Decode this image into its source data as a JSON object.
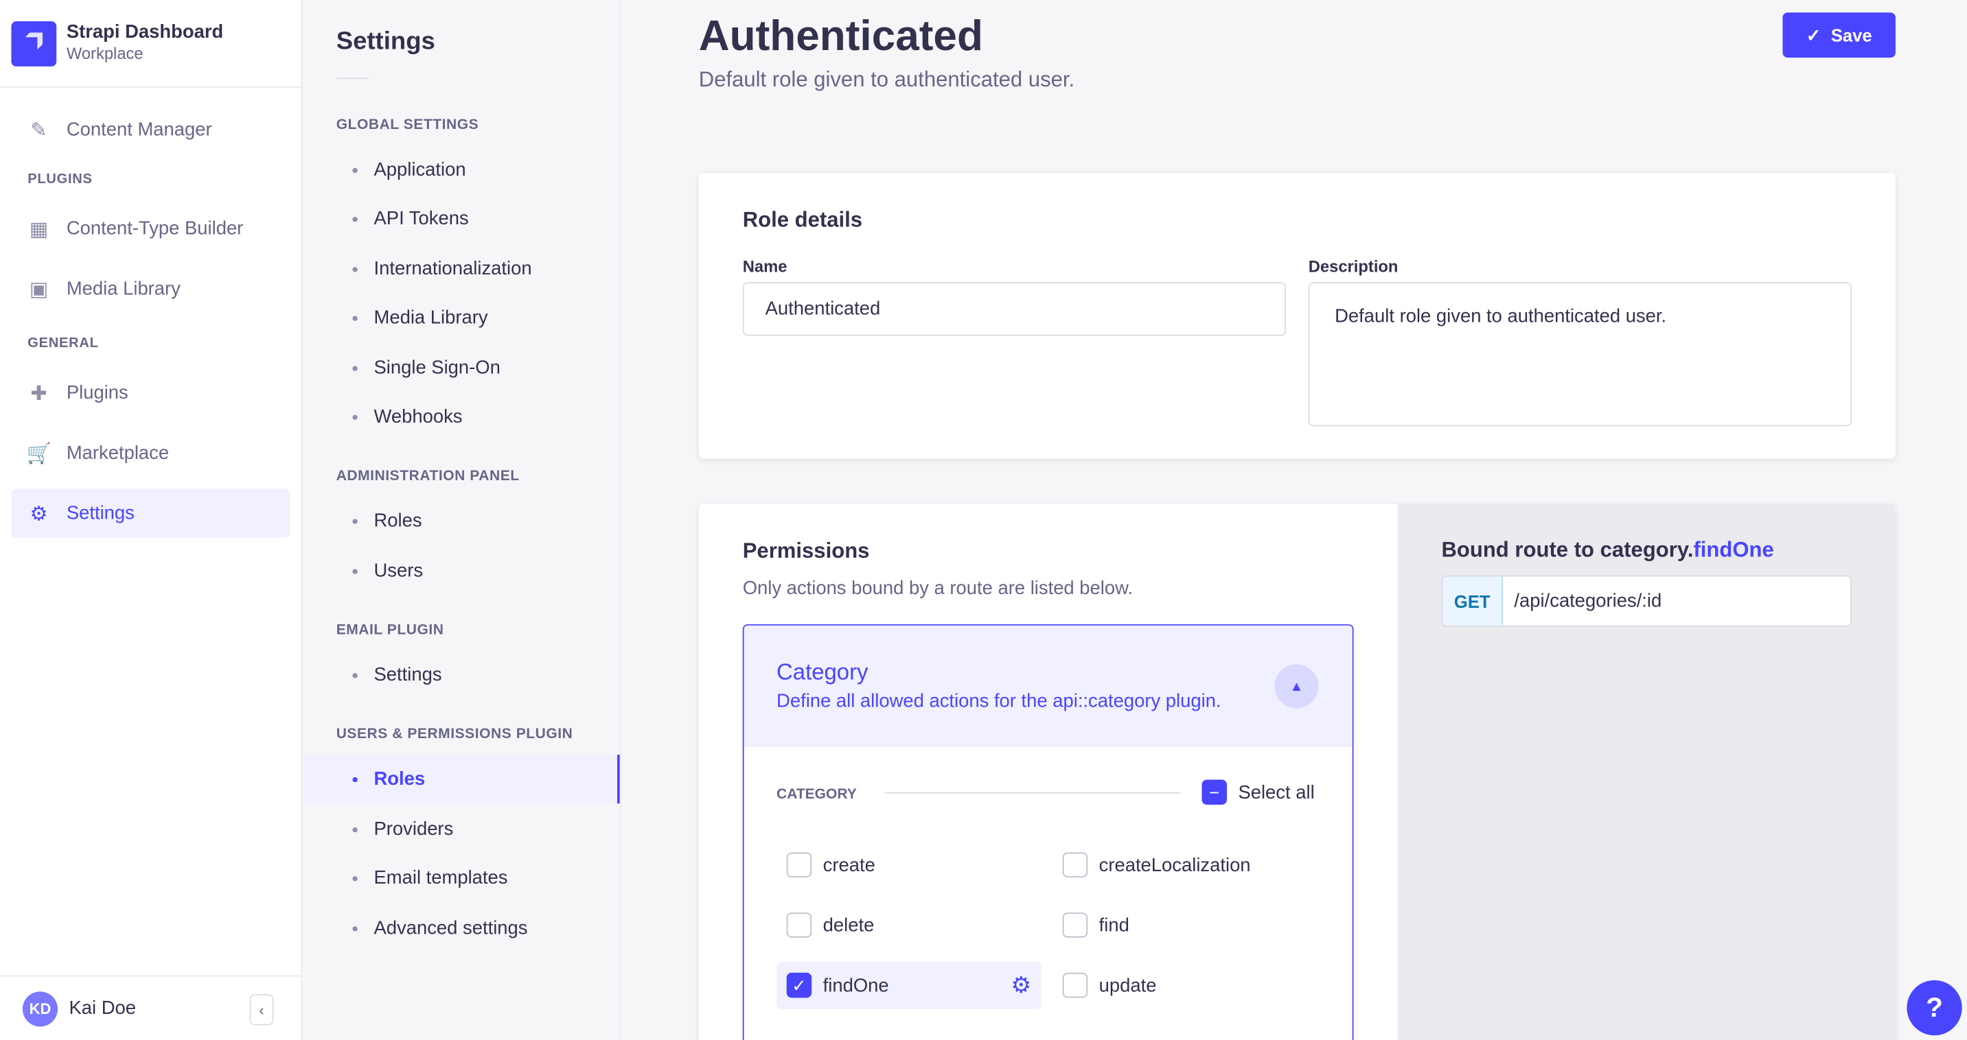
{
  "app": {
    "title": "Strapi Dashboard",
    "workspace": "Workplace"
  },
  "nav": {
    "content_manager": "Content Manager",
    "plugins_section": "PLUGINS",
    "content_type_builder": "Content-Type Builder",
    "media_library": "Media Library",
    "general_section": "GENERAL",
    "plugins": "Plugins",
    "marketplace": "Marketplace",
    "settings": "Settings"
  },
  "user": {
    "initials": "KD",
    "name": "Kai Doe"
  },
  "settings_nav": {
    "title": "Settings",
    "sections": [
      {
        "label": "GLOBAL SETTINGS",
        "items": [
          "Application",
          "API Tokens",
          "Internationalization",
          "Media Library",
          "Single Sign-On",
          "Webhooks"
        ]
      },
      {
        "label": "ADMINISTRATION PANEL",
        "items": [
          "Roles",
          "Users"
        ]
      },
      {
        "label": "EMAIL PLUGIN",
        "items": [
          "Settings"
        ]
      },
      {
        "label": "USERS & PERMISSIONS PLUGIN",
        "items": [
          "Roles",
          "Providers",
          "Email templates",
          "Advanced settings"
        ]
      }
    ],
    "active": "Roles"
  },
  "page": {
    "title": "Authenticated",
    "subtitle": "Default role given to authenticated user.",
    "save_label": "Save"
  },
  "role_details": {
    "heading": "Role details",
    "name_label": "Name",
    "name_value": "Authenticated",
    "description_label": "Description",
    "description_value": "Default role given to authenticated user."
  },
  "permissions": {
    "heading": "Permissions",
    "subtitle": "Only actions bound by a route are listed below.",
    "accordion": {
      "title": "Category",
      "description": "Define all allowed actions for the api::category plugin.",
      "group_label": "CATEGORY",
      "select_all": "Select all"
    },
    "actions": [
      {
        "label": "create",
        "checked": false
      },
      {
        "label": "createLocalization",
        "checked": false
      },
      {
        "label": "delete",
        "checked": false
      },
      {
        "label": "find",
        "checked": false
      },
      {
        "label": "findOne",
        "checked": true
      },
      {
        "label": "update",
        "checked": false
      }
    ]
  },
  "bound_route": {
    "prefix": "Bound route to ",
    "controller": "category.",
    "action": "findOne",
    "method": "GET",
    "path": "/api/categories/:id"
  },
  "colors": {
    "primary": "#4945ff",
    "get_badge": "#0c75af"
  }
}
